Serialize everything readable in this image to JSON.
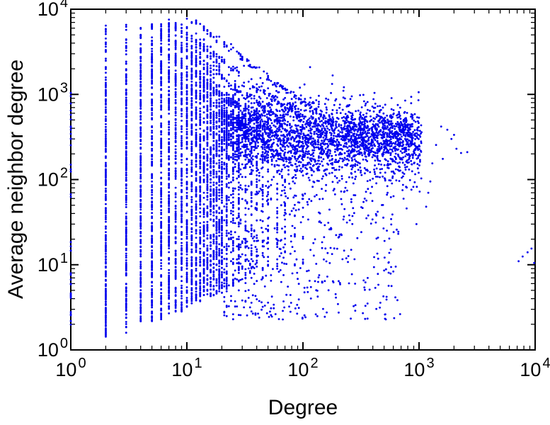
{
  "chart_data": {
    "type": "scatter",
    "title": "",
    "xlabel": "Degree",
    "ylabel": "Average neighbor degree",
    "x_scale": "log",
    "y_scale": "log",
    "xlim": [
      1,
      10000
    ],
    "ylim": [
      1,
      10000
    ],
    "x_ticks": [
      1,
      10,
      100,
      1000,
      10000
    ],
    "y_ticks": [
      1,
      10,
      100,
      1000,
      10000
    ],
    "tick_base": "10",
    "x_tick_exponents": [
      "0",
      "1",
      "2",
      "3",
      "4"
    ],
    "y_tick_exponents": [
      "0",
      "1",
      "2",
      "3",
      "4"
    ],
    "minor_tick_multiples": [
      2,
      3,
      4,
      5,
      6,
      7,
      8,
      9
    ],
    "grid": false,
    "legend": null,
    "marker": {
      "color": "#0000ee",
      "diameter": 2.8,
      "shape": "dot"
    },
    "points_synthesis": {
      "note": "Dense point cloud reconstructed statistically from the screenshot (~7500 points); individual original values are not resolvable at this scale. Ranges are log10 exponents.",
      "seed": 1337,
      "log_columns": [
        [
          1,
          16,
          0.28,
          0.95
        ],
        [
          1,
          9,
          1.0,
          2.3
        ],
        [
          1,
          14,
          2.4,
          3.02
        ],
        [
          2,
          240,
          0.15,
          3.2,
          22,
          3.2,
          3.81
        ],
        [
          3,
          220,
          0.2,
          3.25,
          20,
          3.25,
          3.82
        ],
        [
          4,
          205,
          0.28,
          3.3,
          20,
          3.3,
          3.83
        ],
        [
          5,
          195,
          0.32,
          3.35,
          18,
          3.35,
          3.84
        ],
        [
          6,
          185,
          0.36,
          3.4,
          16,
          3.4,
          3.84
        ],
        [
          7,
          175,
          0.4,
          3.43,
          15,
          3.43,
          3.85
        ],
        [
          8,
          168,
          0.42,
          3.44,
          15,
          3.44,
          3.85
        ],
        [
          9,
          162,
          0.45,
          3.44,
          13,
          3.44,
          3.84
        ],
        [
          10,
          155,
          0.5,
          3.4,
          12,
          3.4,
          3.8
        ],
        [
          11,
          150,
          0.52,
          3.38,
          10,
          3.38,
          3.76
        ],
        [
          12,
          145,
          0.55,
          3.35,
          10,
          3.35,
          3.72
        ],
        [
          13,
          140,
          0.57,
          3.32,
          9,
          3.32,
          3.68
        ],
        [
          14,
          135,
          0.6,
          3.3,
          9,
          3.3,
          3.65
        ],
        [
          15,
          130,
          0.6,
          3.27,
          8,
          3.27,
          3.61
        ],
        [
          16,
          124,
          0.62,
          3.24,
          8,
          3.24,
          3.57
        ],
        [
          17,
          118,
          0.63,
          3.21,
          7,
          3.21,
          3.53
        ],
        [
          18,
          113,
          0.65,
          3.18,
          7,
          3.18,
          3.5
        ],
        [
          19,
          108,
          0.66,
          3.15,
          6,
          3.15,
          3.47
        ],
        [
          20,
          104,
          0.67,
          3.12,
          6,
          3.12,
          3.44
        ],
        [
          22,
          80,
          0.7,
          3.05
        ],
        [
          25,
          70,
          0.72,
          3.0
        ],
        [
          28,
          62,
          0.74,
          2.95
        ],
        [
          32,
          55,
          0.76,
          2.9
        ],
        [
          36,
          48,
          0.78,
          2.85
        ],
        [
          40,
          42,
          0.8,
          2.8
        ],
        [
          45,
          36,
          0.82,
          2.75
        ],
        [
          50,
          32,
          0.84,
          2.72
        ],
        [
          60,
          26,
          0.86,
          2.68
        ],
        [
          70,
          22,
          0.9,
          2.65
        ],
        [
          85,
          18,
          0.95,
          2.6
        ],
        [
          100,
          15,
          1.0,
          2.58
        ]
      ],
      "log_clouds": [
        {
          "n": 2300,
          "xlo": 1.3,
          "xhi": 3.02,
          "xpow": 1.25,
          "dist": "gauss",
          "mean0": 2.62,
          "slope": -0.13,
          "sd": 0.22,
          "ymin": 0.3,
          "ymax": 3.55
        },
        {
          "n": 620,
          "xlo": 1.3,
          "xhi": 2.85,
          "xpow": 1.5,
          "dist": "uniform",
          "ylo": 0.35,
          "yhi": 2.3
        },
        {
          "n": 320,
          "xlo": 2.35,
          "xhi": 2.95,
          "xpow": 1.0,
          "dist": "gauss",
          "mean0": 2.58,
          "slope": -0.05,
          "sd": 0.12,
          "ymin": 2.2,
          "ymax": 2.95
        }
      ],
      "hyperbolic_bands": [
        {
          "c": 80000,
          "n": 150,
          "xlo": 1.0,
          "xhi": 2.35,
          "jitter": 0.025
        },
        {
          "c": 50000,
          "n": 150,
          "xlo": 0.85,
          "xhi": 2.3,
          "jitter": 0.025
        },
        {
          "c": 32000,
          "n": 150,
          "xlo": 0.7,
          "xhi": 2.25,
          "jitter": 0.025
        },
        {
          "c": 20000,
          "n": 150,
          "xlo": 0.6,
          "xhi": 2.2,
          "jitter": 0.025
        },
        {
          "c": 12600,
          "n": 150,
          "xlo": 0.55,
          "xhi": 2.1,
          "jitter": 0.025
        }
      ],
      "outliers": [
        [
          7200,
          11
        ],
        [
          7800,
          12.5
        ],
        [
          8600,
          14
        ],
        [
          9300,
          15.5
        ],
        [
          9800,
          10.5
        ],
        [
          2100,
          230
        ],
        [
          2300,
          205
        ],
        [
          1900,
          300
        ],
        [
          1600,
          175
        ],
        [
          1400,
          255
        ],
        [
          1250,
          95
        ],
        [
          1150,
          48
        ],
        [
          950,
          30
        ],
        [
          1300,
          155
        ],
        [
          2000,
          335
        ],
        [
          1550,
          420
        ],
        [
          1750,
          385
        ],
        [
          1050,
          360
        ],
        [
          2600,
          210
        ],
        [
          1200,
          70
        ]
      ]
    }
  }
}
